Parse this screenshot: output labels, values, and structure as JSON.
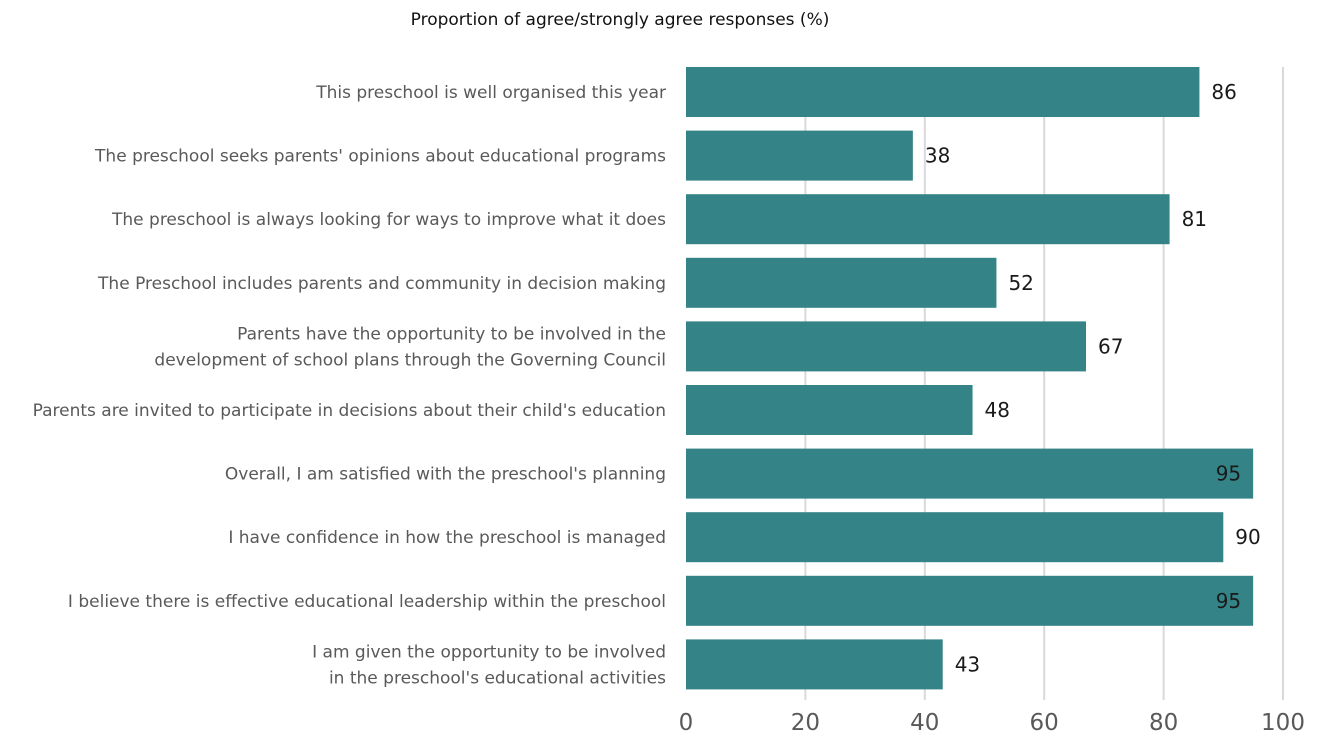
{
  "chart_data": {
    "type": "bar",
    "orientation": "horizontal",
    "title": "Proportion of agree/strongly agree responses (%)",
    "categories": [
      [
        "This preschool is well organised this year"
      ],
      [
        "The preschool seeks parents' opinions about educational programs"
      ],
      [
        "The preschool is always looking for ways to improve what it does"
      ],
      [
        "The Preschool includes parents and community in decision making"
      ],
      [
        "Parents have the opportunity to be involved in the",
        "development of school plans through the Governing Council"
      ],
      [
        "Parents are invited to participate in decisions about their child's education"
      ],
      [
        "Overall, I am satisfied with the preschool's planning"
      ],
      [
        "I have confidence in how the preschool is managed"
      ],
      [
        "I believe there is effective educational leadership within the preschool"
      ],
      [
        "I am given the opportunity to be involved",
        "in the preschool's educational activities"
      ]
    ],
    "values": [
      86,
      38,
      81,
      52,
      67,
      48,
      95,
      90,
      95,
      43
    ],
    "xlim": [
      0,
      100
    ],
    "xticks": [
      0,
      20,
      40,
      60,
      80,
      100
    ],
    "grid": "vertical",
    "bar_color": "#348386",
    "grid_color": "#d9d9d9"
  }
}
